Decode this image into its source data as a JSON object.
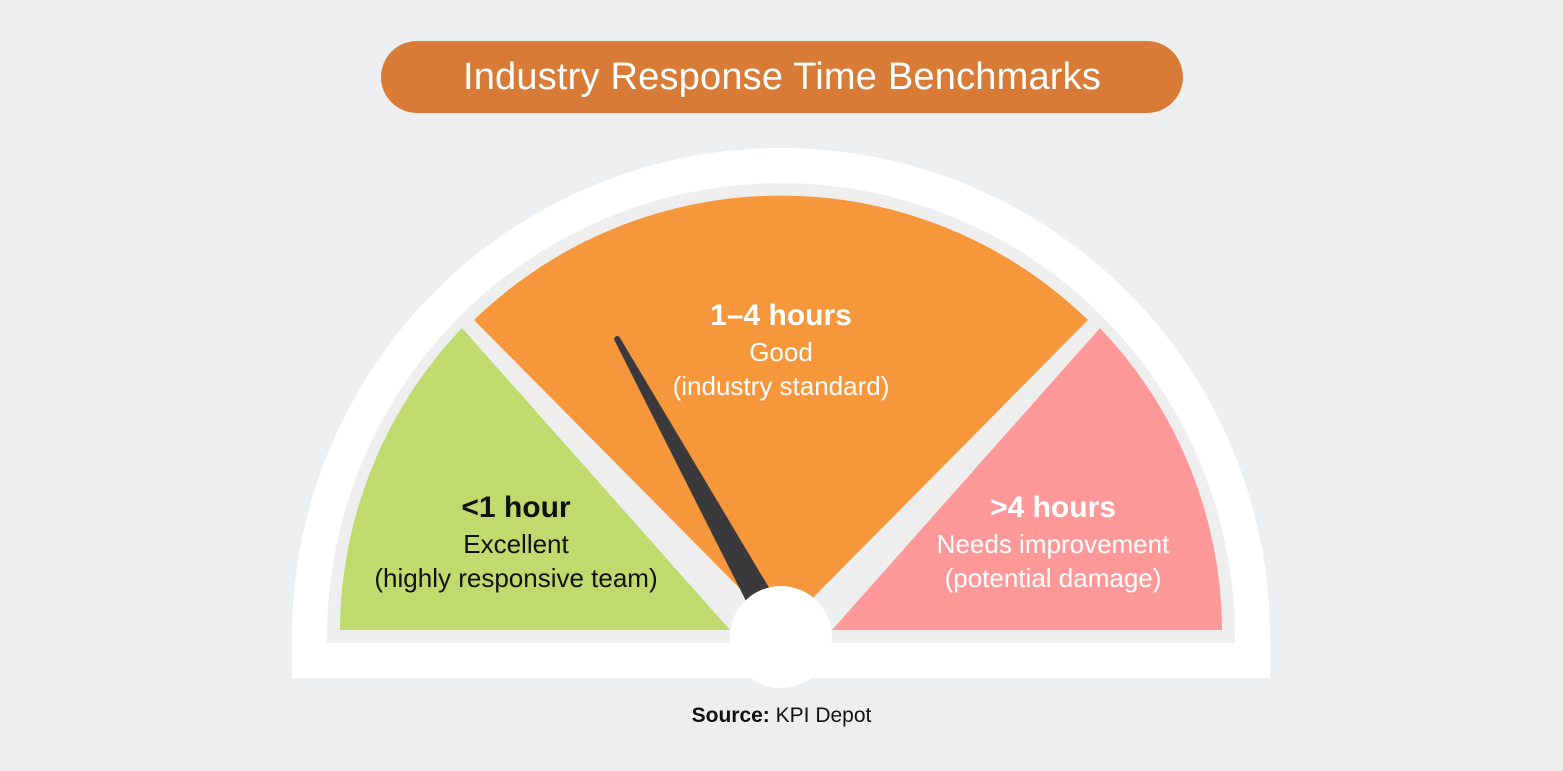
{
  "title": "Industry Response Time Benchmarks",
  "colors": {
    "background": "#edeeef",
    "title_pill": "#d77b37",
    "outer_arc": "#ffffff",
    "inner_ring": "#eeeeef",
    "needle": "#3a3a3c",
    "hub": "#ffffff"
  },
  "segments": [
    {
      "range": "<1 hour",
      "rating": "Excellent",
      "note": "(highly responsive team)",
      "color": "#c1da6e",
      "text_color": "#111111"
    },
    {
      "range": "1–4 hours",
      "rating": "Good",
      "note": "(industry standard)",
      "color": "#f7973c",
      "text_color": "#ffffff"
    },
    {
      "range": ">4 hours",
      "rating": "Needs improvement",
      "note": "(potential damage)",
      "color": "#ff9898",
      "text_color": "#ffffff"
    }
  ],
  "needle_position": 0.34,
  "source": {
    "label": "Source:",
    "value": "KPI Depot"
  }
}
